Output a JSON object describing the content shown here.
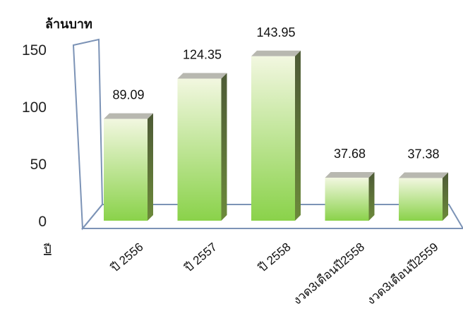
{
  "chart_data": {
    "type": "bar",
    "title": "",
    "unit_label": "ล้านบาท",
    "xlabel": "ปี",
    "ylabel": "",
    "categories": [
      "ปี 2556",
      "ปี 2557",
      "ปี 2558",
      "งวด3เดือนปี2558",
      "งวด3เดือนปี2559"
    ],
    "values": [
      89.09,
      124.35,
      143.95,
      37.68,
      37.38
    ],
    "data_labels": [
      "89.09",
      "124.35",
      "143.95",
      "37.68",
      "37.38"
    ],
    "ylim": [
      0,
      150
    ],
    "yticks": [
      "0",
      "50",
      "100",
      "150"
    ],
    "grid": false,
    "legend": "none",
    "colors": {
      "bar_top": "#f2f7e0",
      "bar_bottom": "#8ad24a",
      "bar_side": "#58693a",
      "bar_cap": "#b8b8b0",
      "frame": "#7c93b6"
    }
  }
}
